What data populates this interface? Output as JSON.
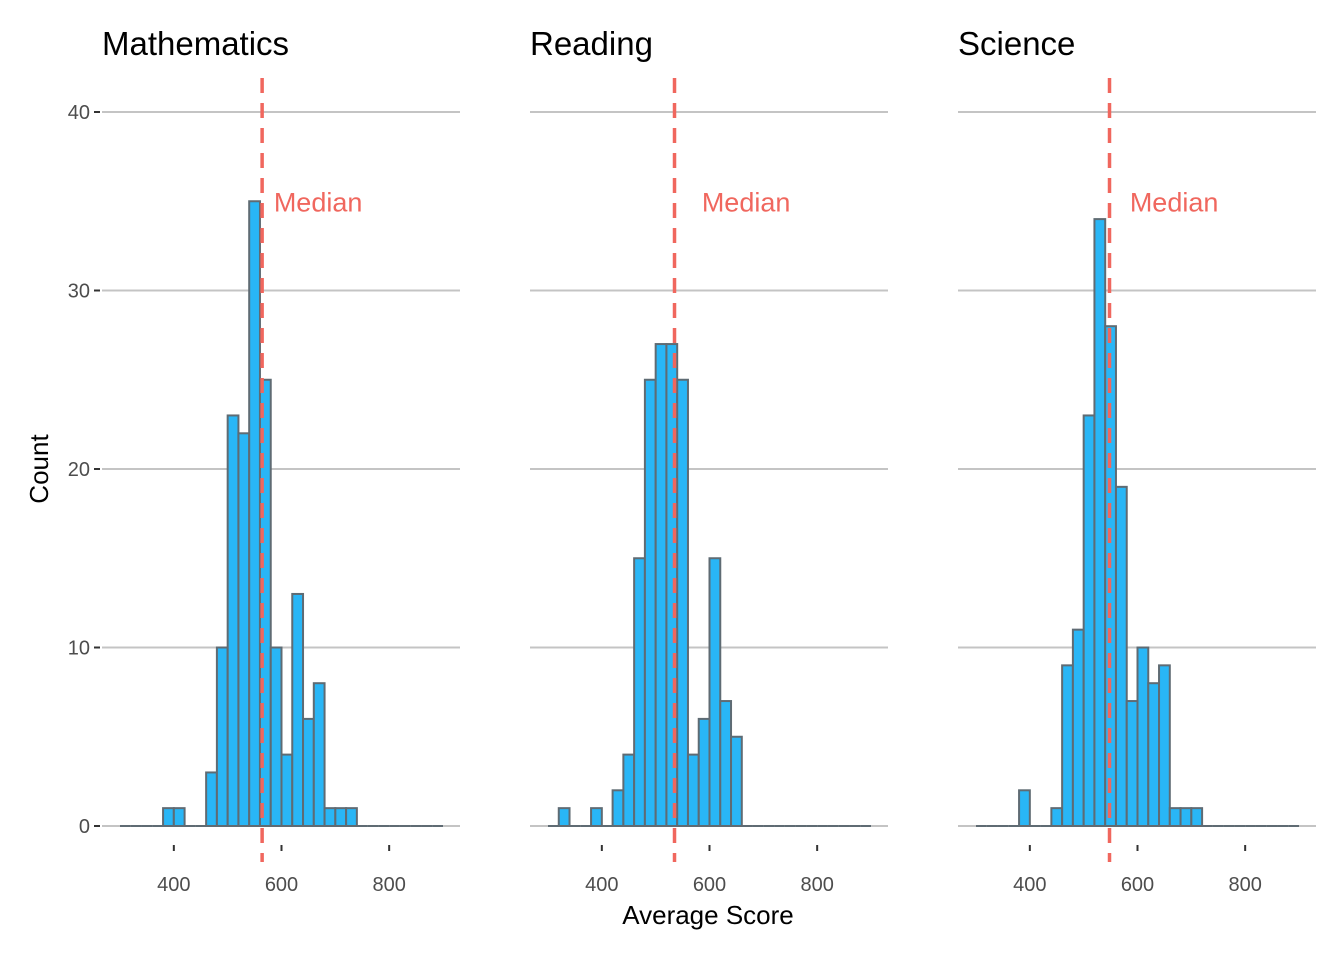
{
  "colors": {
    "bar_fill": "#29B6F6",
    "bar_stroke": "#5F6B73",
    "median": "#F0675E",
    "grid": "#C4C4C4",
    "tick_text": "#4D4D4D"
  },
  "chart_data": [
    {
      "type": "bar",
      "title": "Mathematics",
      "xlabel": "",
      "ylabel": "Count",
      "xlim": [
        290,
        910
      ],
      "ylim": [
        0,
        40
      ],
      "x_ticks": [
        400,
        600,
        800
      ],
      "y_ticks": [
        0,
        10,
        20,
        30,
        40
      ],
      "bin_width": 20,
      "grid": "horizontal",
      "bin_starts": [
        300,
        320,
        340,
        360,
        380,
        400,
        420,
        440,
        460,
        480,
        500,
        520,
        540,
        560,
        580,
        600,
        620,
        640,
        660,
        680,
        700,
        720,
        740,
        760,
        780,
        800,
        820,
        840,
        860,
        880
      ],
      "values": [
        0,
        0,
        0,
        0,
        1,
        1,
        0,
        0,
        3,
        10,
        23,
        22,
        35,
        25,
        10,
        4,
        13,
        6,
        8,
        1,
        1,
        1,
        0,
        0,
        0,
        0,
        0,
        0,
        0,
        0
      ],
      "median": 564,
      "annotation": "Median",
      "annotation_pos": {
        "x": 668,
        "y": 35
      }
    },
    {
      "type": "bar",
      "title": "Reading",
      "xlabel": "Average Score",
      "ylabel": "",
      "xlim": [
        290,
        910
      ],
      "ylim": [
        0,
        40
      ],
      "x_ticks": [
        400,
        600,
        800
      ],
      "y_ticks": [
        0,
        10,
        20,
        30,
        40
      ],
      "bin_width": 20,
      "grid": "horizontal",
      "bin_starts": [
        300,
        320,
        340,
        360,
        380,
        400,
        420,
        440,
        460,
        480,
        500,
        520,
        540,
        560,
        580,
        600,
        620,
        640,
        660,
        680,
        700,
        720,
        740,
        760,
        780,
        800,
        820,
        840,
        860,
        880
      ],
      "values": [
        0,
        1,
        0,
        0,
        1,
        0,
        2,
        4,
        15,
        25,
        27,
        27,
        25,
        4,
        6,
        15,
        7,
        5,
        0,
        0,
        0,
        0,
        0,
        0,
        0,
        0,
        0,
        0,
        0,
        0
      ],
      "median": 535,
      "annotation": "Median",
      "annotation_pos": {
        "x": 668,
        "y": 35
      }
    },
    {
      "type": "bar",
      "title": "Science",
      "xlabel": "",
      "ylabel": "",
      "xlim": [
        290,
        910
      ],
      "ylim": [
        0,
        40
      ],
      "x_ticks": [
        400,
        600,
        800
      ],
      "y_ticks": [
        0,
        10,
        20,
        30,
        40
      ],
      "bin_width": 20,
      "grid": "horizontal",
      "bin_starts": [
        300,
        320,
        340,
        360,
        380,
        400,
        420,
        440,
        460,
        480,
        500,
        520,
        540,
        560,
        580,
        600,
        620,
        640,
        660,
        680,
        700,
        720,
        740,
        760,
        780,
        800,
        820,
        840,
        860,
        880
      ],
      "values": [
        0,
        0,
        0,
        0,
        2,
        0,
        0,
        1,
        9,
        11,
        23,
        34,
        28,
        19,
        7,
        10,
        8,
        9,
        1,
        1,
        1,
        0,
        0,
        0,
        0,
        0,
        0,
        0,
        0,
        0
      ],
      "median": 548,
      "annotation": "Median",
      "annotation_pos": {
        "x": 668,
        "y": 35
      }
    }
  ]
}
